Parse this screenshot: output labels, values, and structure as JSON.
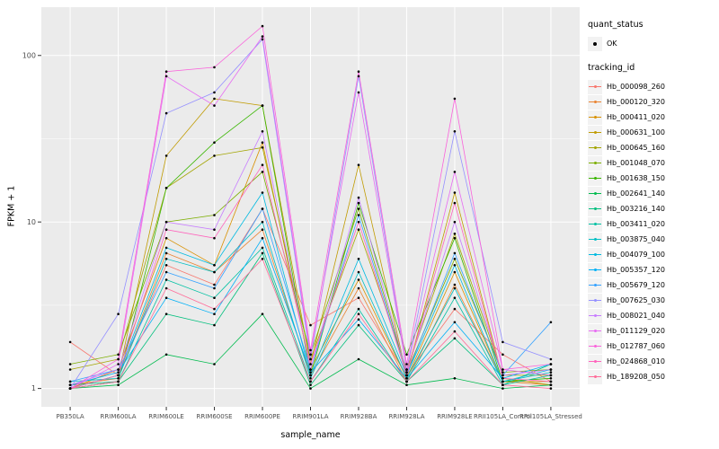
{
  "chart_data": {
    "type": "line",
    "title": "",
    "xlabel": "sample_name",
    "ylabel": "FPKM + 1",
    "y_scale": "log10",
    "y_ticks": [
      1,
      10,
      100
    ],
    "y_tick_labels": [
      "1",
      "10",
      "100"
    ],
    "y_minor_ticks": [
      3.1623,
      31.623
    ],
    "ylim_log10": [
      -0.11,
      2.29
    ],
    "panel_bg": "#EBEBEB",
    "grid_major": "#FFFFFF",
    "grid_minor": "#FFFFFF",
    "point_color": "#000000",
    "categories": [
      "PB350LA",
      "RRIM600LA",
      "RRIM600LE",
      "RRIM600SE",
      "RRIM600PE",
      "RRIM901LA",
      "RRIM928BA",
      "RRIM928LA",
      "RRIM928LE",
      "RRII105LA_Control",
      "RRII105LA_Stressed"
    ],
    "series": [
      {
        "name": "Hb_000098_260",
        "color": "#F8766D",
        "values": [
          1.9,
          1.2,
          5.5,
          4.2,
          12,
          2.4,
          3.5,
          1.2,
          3.0,
          1.6,
          1.1
        ]
      },
      {
        "name": "Hb_000120_320",
        "color": "#EA8331",
        "values": [
          1.05,
          1.15,
          6.5,
          5.0,
          9,
          1.2,
          4.0,
          1.1,
          4.2,
          1.1,
          1.05
        ]
      },
      {
        "name": "Hb_000411_020",
        "color": "#D89000",
        "values": [
          1.0,
          1.3,
          8.0,
          5.5,
          30,
          1.3,
          4.5,
          1.15,
          5.0,
          1.1,
          1.1
        ]
      },
      {
        "name": "Hb_000631_100",
        "color": "#C09B00",
        "values": [
          1.0,
          1.2,
          25,
          55,
          50,
          1.4,
          22,
          1.2,
          15,
          1.15,
          1.05
        ]
      },
      {
        "name": "Hb_000645_160",
        "color": "#A3A500",
        "values": [
          1.3,
          1.5,
          16,
          25,
          28,
          1.5,
          9,
          1.3,
          8.5,
          1.2,
          1.2
        ]
      },
      {
        "name": "Hb_001048_070",
        "color": "#7CAE00",
        "values": [
          1.4,
          1.6,
          10,
          11,
          20,
          1.6,
          12,
          1.25,
          6.0,
          1.25,
          1.3
        ]
      },
      {
        "name": "Hb_001638_150",
        "color": "#39B600",
        "values": [
          1.0,
          1.1,
          16,
          30,
          50,
          1.2,
          13,
          1.6,
          8.0,
          1.1,
          1.15
        ]
      },
      {
        "name": "Hb_002641_140",
        "color": "#00BB4E",
        "values": [
          1.0,
          1.05,
          1.6,
          1.4,
          2.8,
          1.0,
          1.5,
          1.05,
          1.15,
          1.0,
          1.05
        ]
      },
      {
        "name": "Hb_003216_140",
        "color": "#00BF7D",
        "values": [
          1.05,
          1.1,
          2.8,
          2.4,
          6.5,
          1.05,
          2.4,
          1.1,
          2.0,
          1.05,
          1.4
        ]
      },
      {
        "name": "Hb_003411_020",
        "color": "#00C1A3",
        "values": [
          1.0,
          1.1,
          4.5,
          3.5,
          7.0,
          1.1,
          3.0,
          1.1,
          3.5,
          1.05,
          1.2
        ]
      },
      {
        "name": "Hb_003875_040",
        "color": "#00BFC4",
        "values": [
          1.1,
          1.15,
          6.0,
          5.0,
          10,
          1.15,
          5.0,
          1.15,
          4.0,
          1.1,
          1.25
        ]
      },
      {
        "name": "Hb_004079_100",
        "color": "#00BAE0",
        "values": [
          1.0,
          1.2,
          7.0,
          5.5,
          15,
          1.2,
          6.0,
          1.2,
          5.5,
          1.1,
          1.3
        ]
      },
      {
        "name": "Hb_005357_120",
        "color": "#00B0F6",
        "values": [
          1.05,
          1.25,
          3.5,
          2.8,
          8.0,
          1.25,
          2.6,
          1.15,
          2.5,
          1.15,
          1.4
        ]
      },
      {
        "name": "Hb_005679_120",
        "color": "#35A2FF",
        "values": [
          1.1,
          1.3,
          5.0,
          4.0,
          12,
          1.3,
          11,
          1.2,
          6.5,
          1.2,
          2.5
        ]
      },
      {
        "name": "Hb_007625_030",
        "color": "#9590FF",
        "values": [
          1.0,
          2.8,
          45,
          60,
          125,
          1.5,
          75,
          1.3,
          35,
          1.9,
          1.5
        ]
      },
      {
        "name": "Hb_008021_040",
        "color": "#C77CFF",
        "values": [
          1.05,
          1.3,
          10,
          9.0,
          35,
          1.3,
          14,
          1.25,
          10,
          1.2,
          1.3
        ]
      },
      {
        "name": "Hb_011129_020",
        "color": "#E76BF3",
        "values": [
          1.0,
          1.4,
          75,
          50,
          130,
          1.6,
          60,
          1.3,
          20,
          1.3,
          1.2
        ]
      },
      {
        "name": "Hb_012787_060",
        "color": "#FA62DB",
        "values": [
          1.0,
          1.5,
          80,
          85,
          150,
          1.7,
          80,
          1.4,
          55,
          1.3,
          1.4
        ]
      },
      {
        "name": "Hb_024868_010",
        "color": "#FF62BC",
        "values": [
          1.0,
          1.2,
          9.0,
          8.0,
          22,
          1.4,
          10,
          1.2,
          13,
          1.15,
          1.1
        ]
      },
      {
        "name": "Hb_189208_050",
        "color": "#FF6A98",
        "values": [
          1.0,
          1.1,
          4.0,
          3.0,
          6.0,
          1.1,
          2.8,
          1.1,
          2.2,
          1.05,
          1.0
        ]
      }
    ]
  },
  "legend": {
    "quant_status_title": "quant_status",
    "quant_status_items": [
      {
        "label": "OK"
      }
    ],
    "tracking_id_title": "tracking_id"
  }
}
